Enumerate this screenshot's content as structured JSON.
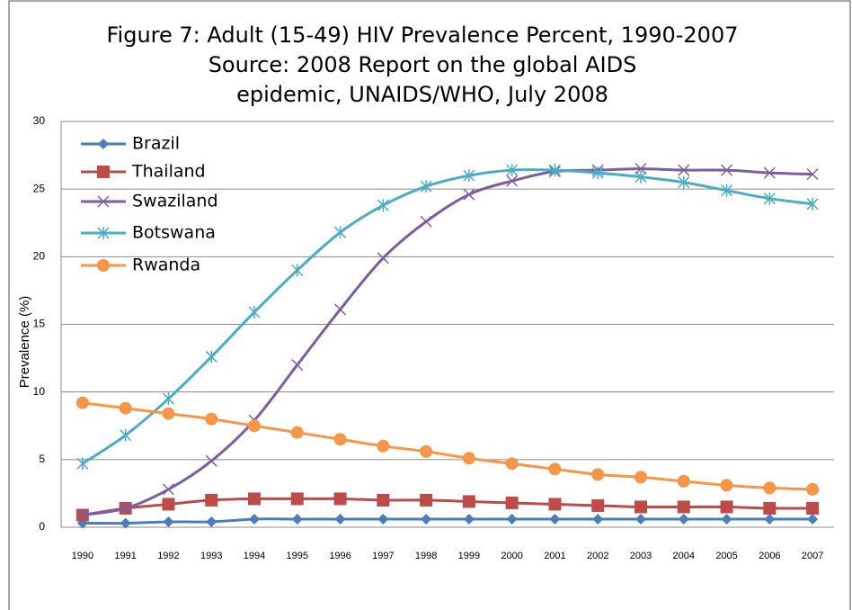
{
  "chart_data": {
    "type": "line",
    "title": [
      "Figure 7:  Adult (15-49) HIV Prevalence Percent, 1990-2007",
      "Source: 2008 Report on the global AIDS",
      "epidemic, UNAIDS/WHO, July 2008"
    ],
    "y_label": "Prevalence (%)",
    "categories": [
      "1990",
      "1991",
      "1992",
      "1993",
      "1994",
      "1995",
      "1996",
      "1997",
      "1998",
      "1999",
      "2000",
      "2001",
      "2002",
      "2003",
      "2004",
      "2005",
      "2006",
      "2007"
    ],
    "series": [
      {
        "name": "Brazil",
        "color": "#4a7ebb",
        "marker": "diamond",
        "values": [
          0.3,
          0.3,
          0.4,
          0.4,
          0.6,
          0.6,
          0.6,
          0.6,
          0.6,
          0.6,
          0.6,
          0.6,
          0.6,
          0.6,
          0.6,
          0.6,
          0.6,
          0.6
        ]
      },
      {
        "name": "Thailand",
        "color": "#be4b48",
        "marker": "square",
        "values": [
          0.9,
          1.4,
          1.7,
          2.0,
          2.1,
          2.1,
          2.1,
          2.0,
          2.0,
          1.9,
          1.8,
          1.7,
          1.6,
          1.5,
          1.5,
          1.5,
          1.4,
          1.4
        ]
      },
      {
        "name": "Swaziland",
        "color": "#7d5fa0",
        "marker": "x",
        "values": [
          0.9,
          1.4,
          2.8,
          4.9,
          7.9,
          12.0,
          16.1,
          19.9,
          22.6,
          24.6,
          25.6,
          26.3,
          26.4,
          26.5,
          26.4,
          26.4,
          26.2,
          26.1
        ]
      },
      {
        "name": "Botswana",
        "color": "#4bacc6",
        "marker": "star",
        "values": [
          4.7,
          6.8,
          9.5,
          12.6,
          15.9,
          19.0,
          21.8,
          23.8,
          25.2,
          26.0,
          26.4,
          26.4,
          26.2,
          25.9,
          25.5,
          24.9,
          24.3,
          23.9
        ]
      },
      {
        "name": "Rwanda",
        "color": "#f79646",
        "marker": "circle",
        "values": [
          9.2,
          8.8,
          8.4,
          8.0,
          7.5,
          7.0,
          6.5,
          6.0,
          5.6,
          5.1,
          4.7,
          4.3,
          3.9,
          3.7,
          3.4,
          3.1,
          2.9,
          2.8
        ]
      }
    ],
    "ylim": [
      0,
      30
    ],
    "yticks": [
      0,
      5,
      10,
      15,
      20,
      25,
      30
    ],
    "grid": true,
    "smooth": true,
    "legend": "top-left"
  }
}
